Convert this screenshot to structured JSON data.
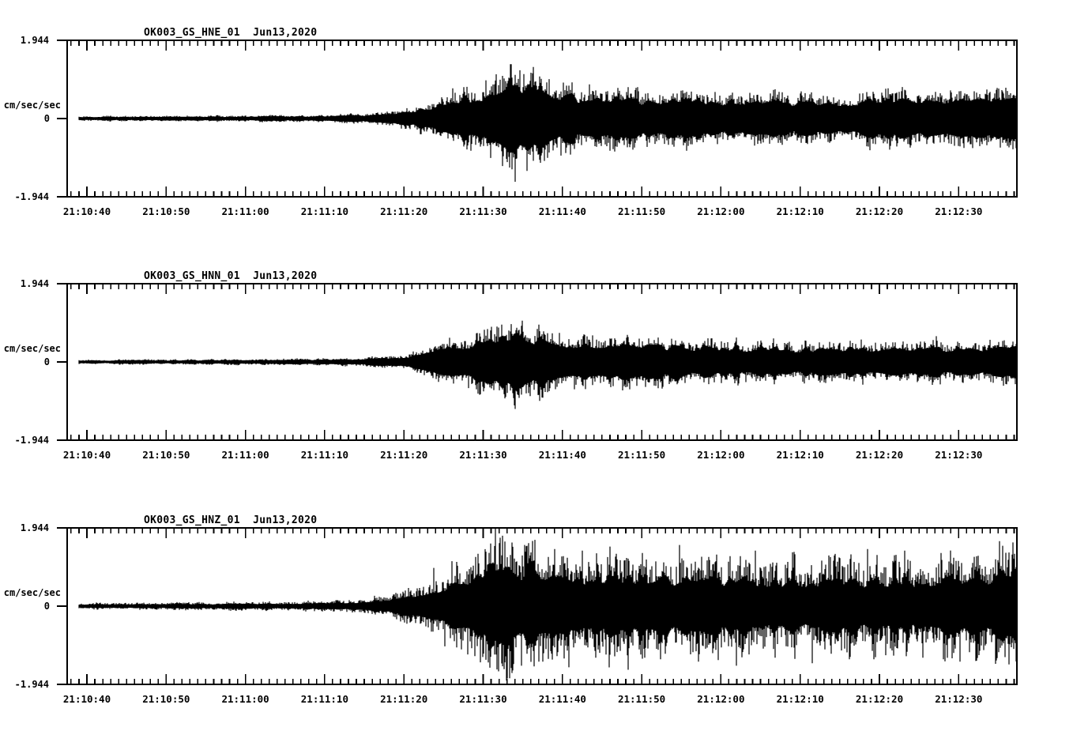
{
  "colors": {
    "background": "#ffffff",
    "trace": "#000000"
  },
  "y_axis_units": "cm/sec/sec",
  "chart_data": [
    {
      "type": "seismogram",
      "title": "OK003_GS_HNE_01  Jun13,2020",
      "station_channel": "OK003_GS_HNE_01",
      "date": "Jun13,2020",
      "ylabel": "cm/sec/sec",
      "ylim": [
        -1.944,
        1.944
      ],
      "y_tick_labels": [
        "1.944",
        "0",
        "-1.944"
      ],
      "x_tick_labels": [
        "21:10:40",
        "21:10:50",
        "21:11:00",
        "21:11:10",
        "21:11:20",
        "21:11:30",
        "21:11:40",
        "21:11:50",
        "21:12:00",
        "21:12:10",
        "21:12:20",
        "21:12:30"
      ],
      "x_tick_interval_sec": 10,
      "x_minor_interval_sec": 1,
      "grid": false,
      "seed": 11,
      "bar": {
        "base": 0.85,
        "rand": 0.55,
        "pow": 3
      },
      "envelope": [
        [
          -1,
          0.045
        ],
        [
          10,
          0.05
        ],
        [
          20,
          0.055
        ],
        [
          28,
          0.062
        ],
        [
          32,
          0.072
        ],
        [
          35,
          0.09
        ],
        [
          37,
          0.11
        ],
        [
          39,
          0.15
        ],
        [
          41,
          0.21
        ],
        [
          43,
          0.3
        ],
        [
          45,
          0.4
        ],
        [
          47,
          0.5
        ],
        [
          49,
          0.58
        ],
        [
          51,
          0.7
        ],
        [
          53,
          0.88
        ],
        [
          54,
          0.95
        ],
        [
          55,
          0.85
        ],
        [
          56,
          0.92
        ],
        [
          57,
          0.85
        ],
        [
          58,
          0.75
        ],
        [
          60,
          0.64
        ],
        [
          62,
          0.58
        ],
        [
          64,
          0.54
        ],
        [
          67,
          0.52
        ],
        [
          70,
          0.5
        ],
        [
          75,
          0.48
        ],
        [
          80,
          0.46
        ],
        [
          85,
          0.45
        ],
        [
          90,
          0.44
        ],
        [
          95,
          0.46
        ],
        [
          100,
          0.48
        ],
        [
          105,
          0.5
        ],
        [
          110,
          0.52
        ],
        [
          114,
          0.54
        ],
        [
          117.4,
          0.55
        ]
      ],
      "spikes": [
        [
          46.2,
          0.75
        ],
        [
          48.5,
          -0.8
        ],
        [
          50.3,
          0.95
        ],
        [
          51.6,
          1.1
        ],
        [
          52.4,
          -1.18
        ],
        [
          53.4,
          1.35
        ],
        [
          54.0,
          -1.57
        ],
        [
          54.6,
          1.2
        ],
        [
          55.5,
          -1.3
        ],
        [
          56.3,
          1.28
        ],
        [
          57.2,
          -1.1
        ],
        [
          58.3,
          0.98
        ],
        [
          59.8,
          -0.92
        ],
        [
          61.2,
          0.9
        ],
        [
          63.4,
          0.85
        ],
        [
          66.0,
          -0.8
        ],
        [
          69.5,
          0.78
        ],
        [
          74.1,
          -0.7
        ],
        [
          79.3,
          0.66
        ],
        [
          85.0,
          -0.62
        ],
        [
          91.2,
          0.6
        ],
        [
          97.5,
          0.62
        ],
        [
          103.8,
          -0.64
        ],
        [
          109.0,
          0.7
        ],
        [
          113.6,
          0.72
        ],
        [
          116.2,
          -0.68
        ]
      ]
    },
    {
      "type": "seismogram",
      "title": "OK003_GS_HNN_01  Jun13,2020",
      "station_channel": "OK003_GS_HNN_01",
      "date": "Jun13,2020",
      "ylabel": "cm/sec/sec",
      "ylim": [
        -1.944,
        1.944
      ],
      "y_tick_labels": [
        "1.944",
        "0",
        "-1.944"
      ],
      "x_tick_labels": [
        "21:10:40",
        "21:10:50",
        "21:11:00",
        "21:11:10",
        "21:11:20",
        "21:11:30",
        "21:11:40",
        "21:11:50",
        "21:12:00",
        "21:12:10",
        "21:12:20",
        "21:12:30"
      ],
      "x_tick_interval_sec": 10,
      "x_minor_interval_sec": 1,
      "grid": false,
      "seed": 22,
      "bar": {
        "base": 0.85,
        "rand": 0.55,
        "pow": 3
      },
      "envelope": [
        [
          -1,
          0.04
        ],
        [
          10,
          0.045
        ],
        [
          20,
          0.05
        ],
        [
          30,
          0.06
        ],
        [
          34,
          0.075
        ],
        [
          37,
          0.095
        ],
        [
          39,
          0.12
        ],
        [
          41,
          0.17
        ],
        [
          43,
          0.25
        ],
        [
          45,
          0.33
        ],
        [
          47,
          0.42
        ],
        [
          49,
          0.5
        ],
        [
          51,
          0.58
        ],
        [
          53,
          0.68
        ],
        [
          54.5,
          0.72
        ],
        [
          56,
          0.66
        ],
        [
          58,
          0.58
        ],
        [
          60,
          0.52
        ],
        [
          63,
          0.48
        ],
        [
          66,
          0.45
        ],
        [
          70,
          0.42
        ],
        [
          75,
          0.4
        ],
        [
          80,
          0.38
        ],
        [
          85,
          0.37
        ],
        [
          90,
          0.36
        ],
        [
          95,
          0.36
        ],
        [
          100,
          0.36
        ],
        [
          105,
          0.37
        ],
        [
          110,
          0.38
        ],
        [
          114,
          0.4
        ],
        [
          117.4,
          0.4
        ]
      ],
      "spikes": [
        [
          45.8,
          0.6
        ],
        [
          48.2,
          -0.65
        ],
        [
          50.1,
          0.8
        ],
        [
          51.7,
          0.88
        ],
        [
          52.6,
          -0.8
        ],
        [
          53.5,
          0.94
        ],
        [
          53.9,
          -1.08
        ],
        [
          54.8,
          0.9
        ],
        [
          55.9,
          -0.85
        ],
        [
          56.8,
          0.82
        ],
        [
          58.1,
          -0.75
        ],
        [
          59.6,
          0.72
        ],
        [
          61.5,
          -0.68
        ],
        [
          63.8,
          0.66
        ],
        [
          66.4,
          -0.6
        ],
        [
          69.7,
          0.58
        ],
        [
          73.5,
          -0.55
        ],
        [
          78.0,
          0.52
        ],
        [
          83.2,
          -0.5
        ],
        [
          88.6,
          0.5
        ],
        [
          94.0,
          -0.48
        ],
        [
          99.5,
          0.48
        ],
        [
          104.8,
          -0.5
        ],
        [
          107.2,
          0.64
        ],
        [
          110.6,
          -0.52
        ],
        [
          114.0,
          0.55
        ],
        [
          116.1,
          -0.5
        ]
      ]
    },
    {
      "type": "seismogram",
      "title": "OK003_GS_HNZ_01  Jun13,2020",
      "station_channel": "OK003_GS_HNZ_01",
      "date": "Jun13,2020",
      "ylabel": "cm/sec/sec",
      "ylim": [
        -1.944,
        1.944
      ],
      "y_tick_labels": [
        "1.944",
        "0",
        "-1.944"
      ],
      "x_tick_labels": [
        "21:10:40",
        "21:10:50",
        "21:11:00",
        "21:11:10",
        "21:11:20",
        "21:11:30",
        "21:11:40",
        "21:11:50",
        "21:12:00",
        "21:12:10",
        "21:12:20",
        "21:12:30"
      ],
      "x_tick_interval_sec": 10,
      "x_minor_interval_sec": 1,
      "grid": false,
      "seed": 33,
      "bar": {
        "base": 0.8,
        "rand": 0.8,
        "pow": 2.5
      },
      "envelope": [
        [
          -1,
          0.05
        ],
        [
          10,
          0.055
        ],
        [
          20,
          0.065
        ],
        [
          28,
          0.08
        ],
        [
          32,
          0.1
        ],
        [
          35,
          0.13
        ],
        [
          37,
          0.16
        ],
        [
          39,
          0.22
        ],
        [
          41,
          0.3
        ],
        [
          43,
          0.42
        ],
        [
          45,
          0.55
        ],
        [
          47,
          0.68
        ],
        [
          49,
          0.85
        ],
        [
          51,
          1.1
        ],
        [
          52,
          1.25
        ],
        [
          53,
          1.1
        ],
        [
          55,
          1.0
        ],
        [
          57,
          0.95
        ],
        [
          59,
          0.9
        ],
        [
          62,
          0.86
        ],
        [
          65,
          0.82
        ],
        [
          68,
          0.8
        ],
        [
          72,
          0.78
        ],
        [
          76,
          0.76
        ],
        [
          80,
          0.75
        ],
        [
          85,
          0.73
        ],
        [
          90,
          0.71
        ],
        [
          95,
          0.7
        ],
        [
          100,
          0.72
        ],
        [
          105,
          0.73
        ],
        [
          110,
          0.75
        ],
        [
          114,
          0.78
        ],
        [
          116,
          0.95
        ],
        [
          117.4,
          0.8
        ]
      ],
      "spikes": [
        [
          43.8,
          0.95
        ],
        [
          45.2,
          -1.0
        ],
        [
          46.7,
          1.1
        ],
        [
          48.1,
          -1.2
        ],
        [
          49.4,
          1.3
        ],
        [
          50.6,
          -1.4
        ],
        [
          51.5,
          1.93
        ],
        [
          51.9,
          -1.62
        ],
        [
          52.4,
          1.75
        ],
        [
          52.9,
          -1.85
        ],
        [
          53.6,
          1.58
        ],
        [
          54.8,
          -1.48
        ],
        [
          56.2,
          1.62
        ],
        [
          57.5,
          -1.38
        ],
        [
          59.0,
          1.42
        ],
        [
          60.8,
          -1.52
        ],
        [
          62.5,
          1.38
        ],
        [
          64.2,
          -1.28
        ],
        [
          66.0,
          1.48
        ],
        [
          68.3,
          -1.58
        ],
        [
          70.1,
          1.32
        ],
        [
          72.4,
          -1.22
        ],
        [
          74.8,
          1.52
        ],
        [
          77.2,
          -1.38
        ],
        [
          79.5,
          1.28
        ],
        [
          82.0,
          -1.48
        ],
        [
          84.3,
          1.38
        ],
        [
          86.8,
          -1.28
        ],
        [
          89.2,
          1.32
        ],
        [
          91.5,
          -1.42
        ],
        [
          93.8,
          1.22
        ],
        [
          96.2,
          -1.32
        ],
        [
          98.5,
          1.42
        ],
        [
          100.8,
          -1.22
        ],
        [
          103.2,
          1.38
        ],
        [
          105.5,
          -1.28
        ],
        [
          107.8,
          1.32
        ],
        [
          110.2,
          -1.38
        ],
        [
          112.5,
          1.25
        ],
        [
          114.8,
          -1.35
        ],
        [
          115.6,
          1.5
        ],
        [
          116.4,
          -1.45
        ],
        [
          117.0,
          1.3
        ]
      ]
    }
  ]
}
